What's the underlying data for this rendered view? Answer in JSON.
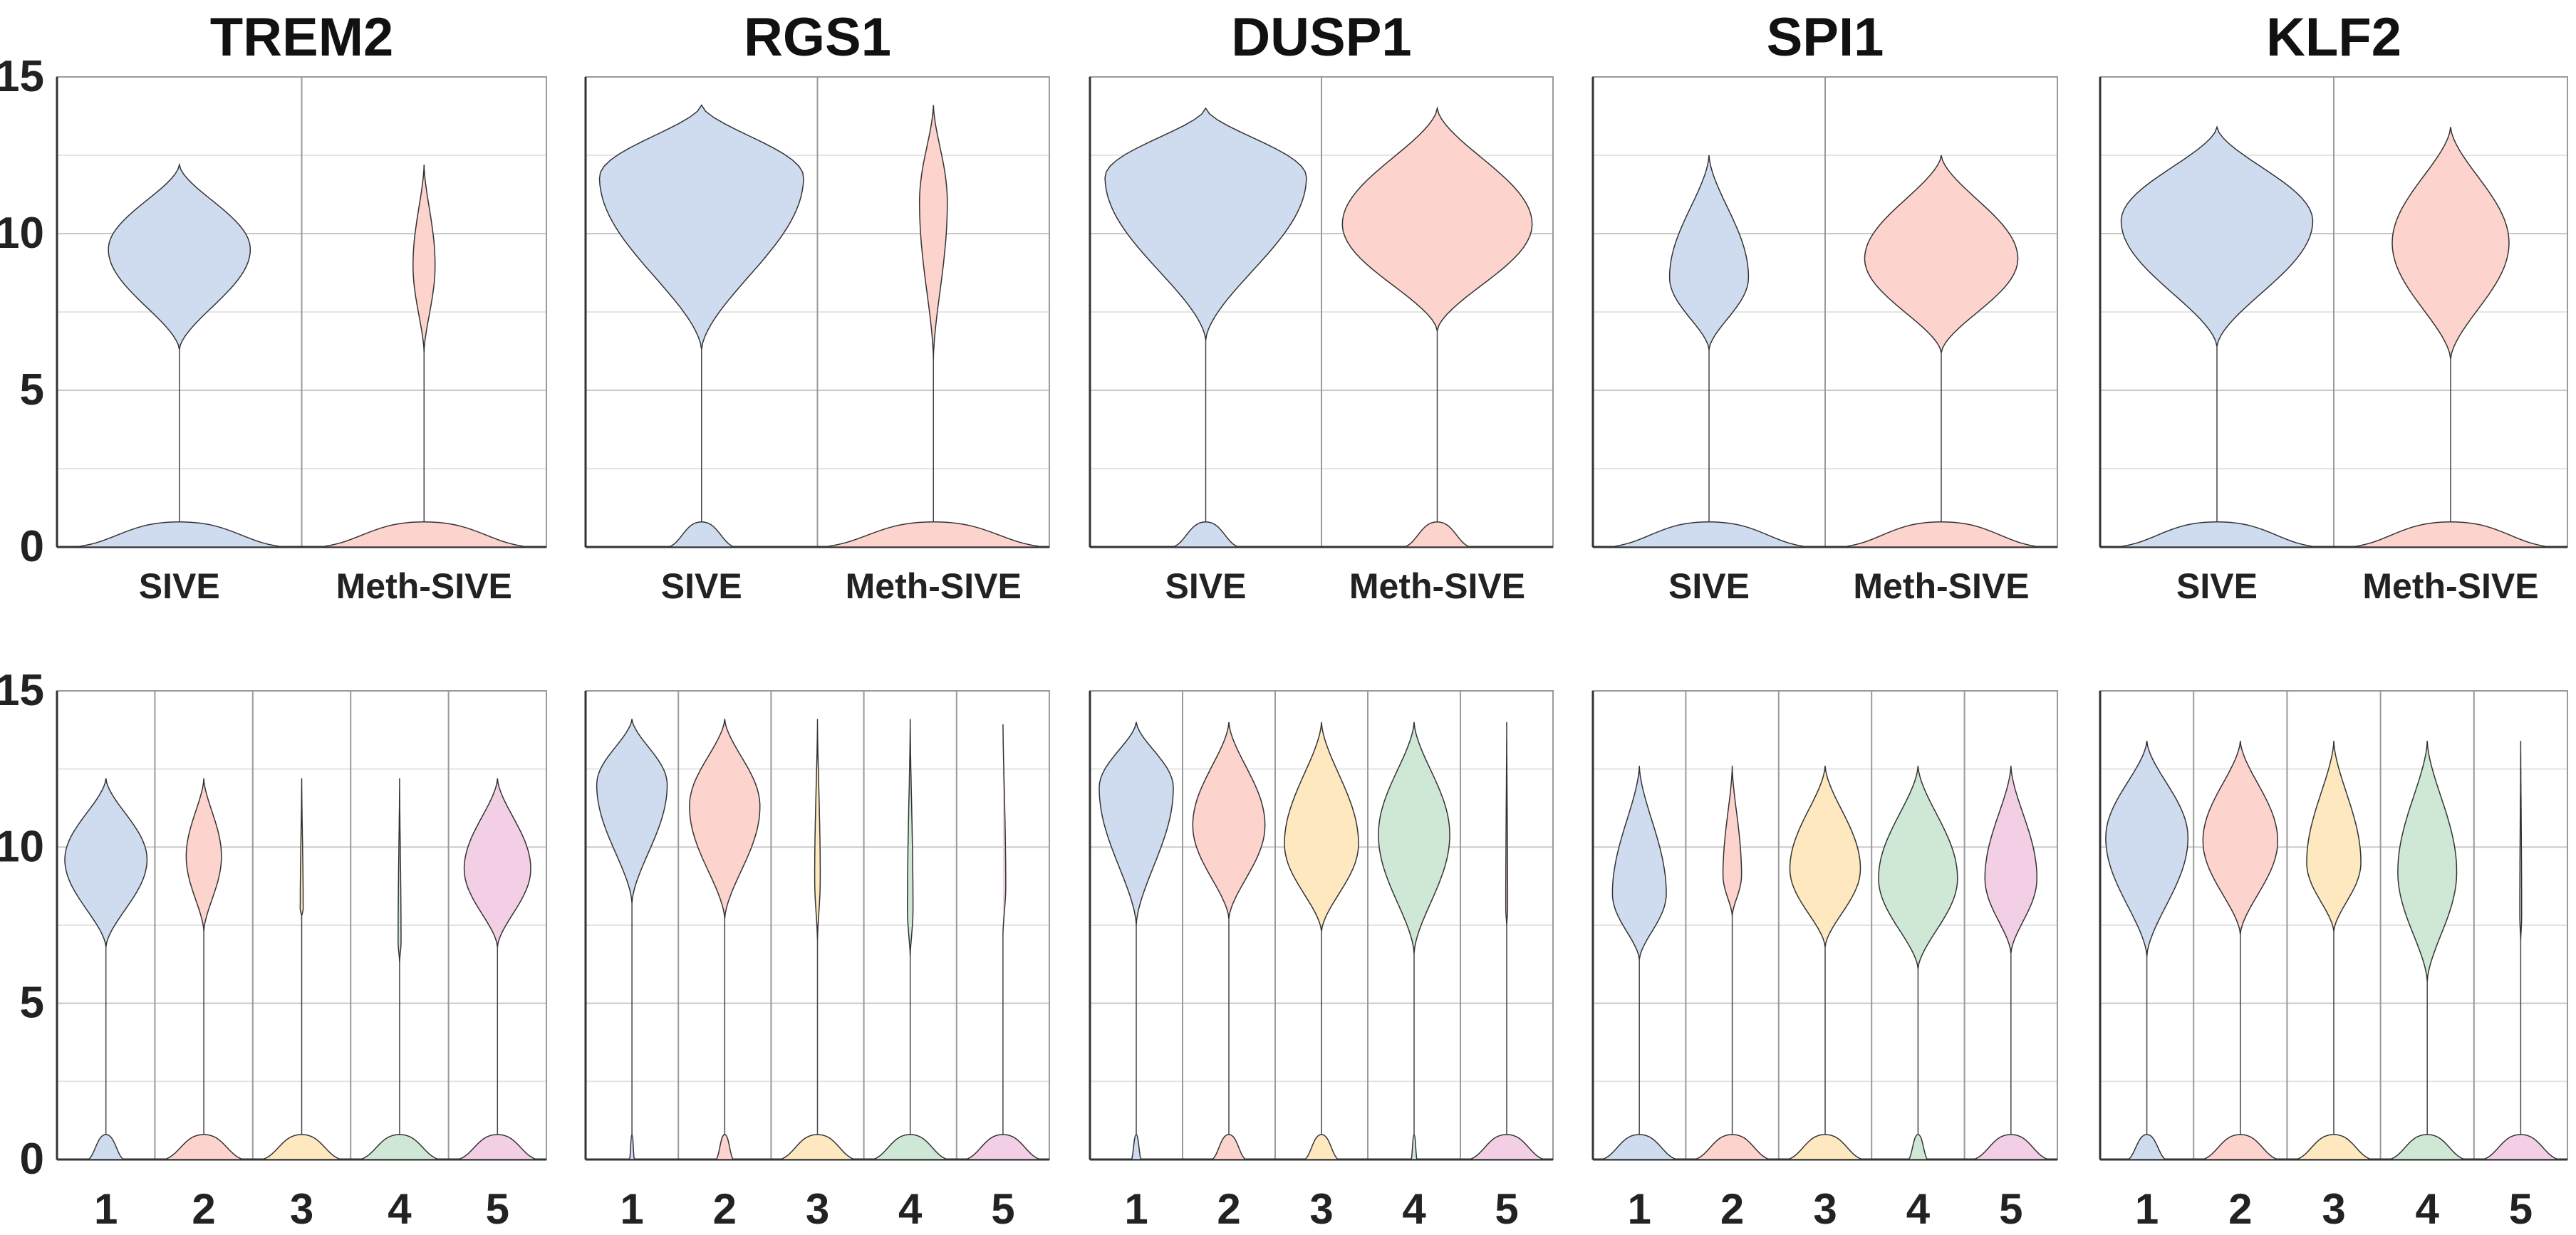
{
  "chart_data": [
    {
      "type": "violin",
      "panel_row": "top",
      "genes": [
        "TREM2",
        "RGS1",
        "DUSP1",
        "SPI1",
        "KLF2"
      ],
      "categories": [
        "SIVE",
        "Meth-SIVE"
      ],
      "ylim": [
        0,
        15
      ],
      "yticks": [
        0,
        5,
        10,
        15
      ],
      "colors": {
        "SIVE": "#cfdcef",
        "Meth-SIVE": "#fdd3cd"
      },
      "series": [
        {
          "gene": "TREM2",
          "violins": [
            {
              "category": "SIVE",
              "mode": 9.5,
              "max": 12.2,
              "lower_start": 6.3,
              "width": 0.58,
              "zero_width": 0.85
            },
            {
              "category": "Meth-SIVE",
              "mode": 9.0,
              "max": 12.2,
              "lower_start": 6.2,
              "width": 0.09,
              "zero_width": 0.85
            }
          ]
        },
        {
          "gene": "RGS1",
          "violins": [
            {
              "category": "SIVE",
              "mode": 11.8,
              "max": 14.1,
              "lower_start": 6.3,
              "width": 0.88,
              "zero_width": 0.28
            },
            {
              "category": "Meth-SIVE",
              "mode": 11.0,
              "max": 14.1,
              "lower_start": 6.0,
              "width": 0.12,
              "zero_width": 0.95
            }
          ]
        },
        {
          "gene": "DUSP1",
          "violins": [
            {
              "category": "SIVE",
              "mode": 11.8,
              "max": 14.0,
              "lower_start": 6.6,
              "width": 0.87,
              "zero_width": 0.28
            },
            {
              "category": "Meth-SIVE",
              "mode": 10.3,
              "max": 14.0,
              "lower_start": 6.9,
              "width": 0.82,
              "zero_width": 0.28
            }
          ]
        },
        {
          "gene": "SPI1",
          "violins": [
            {
              "category": "SIVE",
              "mode": 8.6,
              "max": 12.5,
              "lower_start": 6.3,
              "width": 0.34,
              "zero_width": 0.85
            },
            {
              "category": "Meth-SIVE",
              "mode": 9.2,
              "max": 12.5,
              "lower_start": 6.2,
              "width": 0.66,
              "zero_width": 0.85
            }
          ]
        },
        {
          "gene": "KLF2",
          "violins": [
            {
              "category": "SIVE",
              "mode": 10.4,
              "max": 13.4,
              "lower_start": 6.4,
              "width": 0.82,
              "zero_width": 0.85
            },
            {
              "category": "Meth-SIVE",
              "mode": 9.7,
              "max": 13.4,
              "lower_start": 6.0,
              "width": 0.5,
              "zero_width": 0.85
            }
          ]
        }
      ]
    },
    {
      "type": "violin",
      "panel_row": "bottom",
      "genes": [
        "TREM2",
        "RGS1",
        "DUSP1",
        "SPI1",
        "KLF2"
      ],
      "categories": [
        "1",
        "2",
        "3",
        "4",
        "5"
      ],
      "ylim": [
        0,
        15
      ],
      "yticks": [
        0,
        5,
        10,
        15
      ],
      "colors": {
        "1": "#cfdcef",
        "2": "#fdd3cd",
        "3": "#fde8bf",
        "4": "#cfe8d5",
        "5": "#f3cfe6"
      },
      "series": [
        {
          "gene": "TREM2",
          "violins": [
            {
              "category": "1",
              "mode": 9.6,
              "max": 12.2,
              "lower_start": 6.8,
              "width": 0.84,
              "zero_width": 0.36
            },
            {
              "category": "2",
              "mode": 9.7,
              "max": 12.2,
              "lower_start": 7.3,
              "width": 0.36,
              "zero_width": 0.8
            },
            {
              "category": "3",
              "mode": 8.0,
              "max": 12.2,
              "lower_start": 7.8,
              "width": 0.03,
              "zero_width": 0.8
            },
            {
              "category": "4",
              "mode": 7.0,
              "max": 12.2,
              "lower_start": 6.3,
              "width": 0.03,
              "zero_width": 0.8
            },
            {
              "category": "5",
              "mode": 9.3,
              "max": 12.2,
              "lower_start": 6.8,
              "width": 0.68,
              "zero_width": 0.8
            }
          ]
        },
        {
          "gene": "RGS1",
          "violins": [
            {
              "category": "1",
              "mode": 12.0,
              "max": 14.1,
              "lower_start": 8.2,
              "width": 0.76,
              "zero_width": 0.05
            },
            {
              "category": "2",
              "mode": 11.3,
              "max": 14.1,
              "lower_start": 7.7,
              "width": 0.76,
              "zero_width": 0.18
            },
            {
              "category": "3",
              "mode": 9.0,
              "max": 14.1,
              "lower_start": 7.0,
              "width": 0.06,
              "zero_width": 0.8
            },
            {
              "category": "4",
              "mode": 8.0,
              "max": 14.1,
              "lower_start": 6.5,
              "width": 0.06,
              "zero_width": 0.8
            },
            {
              "category": "5",
              "mode": 8.8,
              "max": 14.1,
              "lower_start": 7.2,
              "width": 0.06,
              "zero_width": 0.8
            }
          ]
        },
        {
          "gene": "DUSP1",
          "violins": [
            {
              "category": "1",
              "mode": 11.9,
              "max": 14.0,
              "lower_start": 7.5,
              "width": 0.8,
              "zero_width": 0.1
            },
            {
              "category": "2",
              "mode": 10.7,
              "max": 14.0,
              "lower_start": 7.7,
              "width": 0.78,
              "zero_width": 0.36
            },
            {
              "category": "3",
              "mode": 10.1,
              "max": 14.0,
              "lower_start": 7.3,
              "width": 0.8,
              "zero_width": 0.36
            },
            {
              "category": "4",
              "mode": 10.4,
              "max": 14.0,
              "lower_start": 6.6,
              "width": 0.77,
              "zero_width": 0.06
            },
            {
              "category": "5",
              "mode": 8.0,
              "max": 14.0,
              "lower_start": 7.5,
              "width": 0.02,
              "zero_width": 0.8
            }
          ]
        },
        {
          "gene": "SPI1",
          "violins": [
            {
              "category": "1",
              "mode": 8.5,
              "max": 12.6,
              "lower_start": 6.4,
              "width": 0.58,
              "zero_width": 0.8
            },
            {
              "category": "2",
              "mode": 9.1,
              "max": 12.6,
              "lower_start": 7.8,
              "width": 0.2,
              "zero_width": 0.8
            },
            {
              "category": "3",
              "mode": 9.3,
              "max": 12.6,
              "lower_start": 6.8,
              "width": 0.76,
              "zero_width": 0.8
            },
            {
              "category": "4",
              "mode": 9.0,
              "max": 12.6,
              "lower_start": 6.1,
              "width": 0.85,
              "zero_width": 0.2
            },
            {
              "category": "5",
              "mode": 9.0,
              "max": 12.6,
              "lower_start": 6.6,
              "width": 0.56,
              "zero_width": 0.8
            }
          ]
        },
        {
          "gene": "KLF2",
          "violins": [
            {
              "category": "1",
              "mode": 10.3,
              "max": 13.4,
              "lower_start": 6.5,
              "width": 0.88,
              "zero_width": 0.4
            },
            {
              "category": "2",
              "mode": 10.2,
              "max": 13.4,
              "lower_start": 7.2,
              "width": 0.8,
              "zero_width": 0.8
            },
            {
              "category": "3",
              "mode": 9.5,
              "max": 13.4,
              "lower_start": 7.3,
              "width": 0.58,
              "zero_width": 0.8
            },
            {
              "category": "4",
              "mode": 9.2,
              "max": 13.4,
              "lower_start": 5.7,
              "width": 0.63,
              "zero_width": 0.8
            },
            {
              "category": "5",
              "mode": 7.8,
              "max": 13.4,
              "lower_start": 7.0,
              "width": 0.02,
              "zero_width": 0.8
            }
          ]
        }
      ]
    }
  ]
}
